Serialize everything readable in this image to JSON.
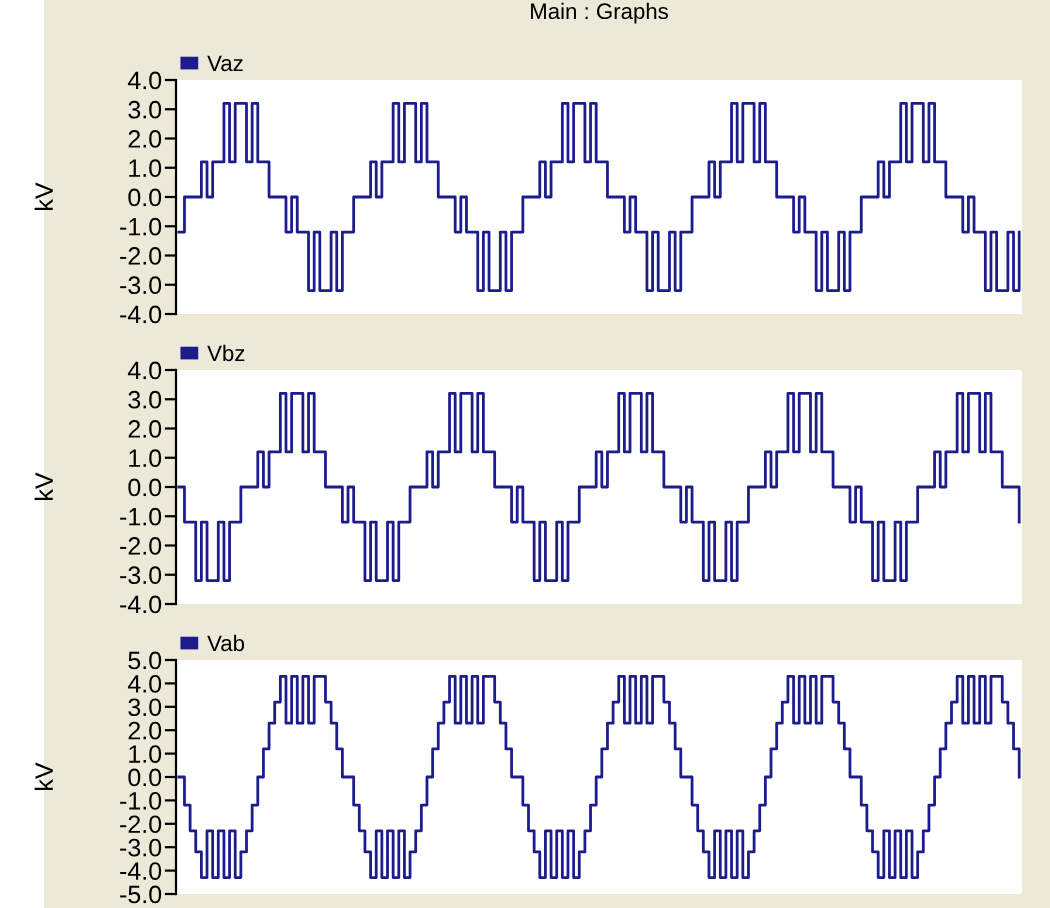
{
  "chart_data": [
    {
      "type": "step",
      "title": "Main : Graphs",
      "ylabel": "kV",
      "legend": "top left",
      "tick_labels": "y",
      "grid": false,
      "categories": [
        null,
        null,
        null,
        null,
        null,
        null,
        null,
        null,
        null,
        null,
        null,
        null,
        null,
        null,
        null,
        null,
        null,
        null,
        null,
        null,
        null,
        null,
        null,
        null,
        null,
        null,
        null,
        null,
        null,
        null,
        null,
        null,
        null,
        null,
        null,
        null,
        null,
        null,
        null,
        null,
        null,
        null,
        null,
        null,
        null,
        null,
        null,
        null,
        null,
        null,
        null,
        null,
        null,
        null,
        null,
        null,
        null,
        null,
        null,
        null,
        null,
        null,
        null,
        null,
        null,
        null,
        null,
        null,
        null,
        null,
        null,
        null,
        null,
        null,
        null,
        null,
        null,
        null,
        null,
        null,
        null,
        null,
        null,
        null,
        null,
        null,
        null,
        null,
        null,
        null,
        null,
        null,
        null,
        null,
        null,
        null,
        null,
        null,
        null,
        null,
        null,
        null,
        null,
        null,
        null,
        null,
        null,
        null,
        null,
        null,
        null,
        null,
        null,
        null,
        null,
        null,
        null,
        null,
        null,
        null,
        null,
        null,
        null,
        null,
        null,
        null,
        null,
        null,
        null,
        null,
        null,
        null,
        null,
        null,
        null,
        null,
        null,
        null,
        null,
        null,
        null,
        null,
        null,
        null,
        null,
        null,
        null,
        null,
        null,
        null
      ],
      "ylim": [
        -4,
        4
      ],
      "yticks": [
        {
          "value": 4,
          "label": "4.0"
        },
        {
          "value": 3,
          "label": "3.0"
        },
        {
          "value": 2,
          "label": "2.0"
        },
        {
          "value": 1,
          "label": "1.0"
        },
        {
          "value": 0,
          "label": "0.0"
        },
        {
          "value": -1,
          "label": "-1.0"
        },
        {
          "value": -2,
          "label": "-2.0"
        },
        {
          "value": -3,
          "label": "-3.0"
        },
        {
          "value": -4,
          "label": "-4.0"
        }
      ],
      "series": [
        {
          "name": "Vaz",
          "color": "#1c1c8c",
          "values": [
            -1.2,
            0,
            0,
            0,
            1.2,
            0,
            1.2,
            1.2,
            3.2,
            1.2,
            3.2,
            3.2,
            1.2,
            3.2,
            1.2,
            1.2,
            0,
            0,
            0,
            -1.2,
            0,
            -1.2,
            -1.2,
            -3.2,
            -1.2,
            -3.2,
            -3.2,
            -1.2,
            -3.2,
            -1.2,
            -1.2,
            0,
            0,
            0,
            1.2,
            0,
            1.2,
            1.2,
            3.2,
            1.2,
            3.2,
            3.2,
            1.2,
            3.2,
            1.2,
            1.2,
            0,
            0,
            0,
            -1.2,
            0,
            -1.2,
            -1.2,
            -3.2,
            -1.2,
            -3.2,
            -3.2,
            -1.2,
            -3.2,
            -1.2,
            -1.2,
            0,
            0,
            0,
            1.2,
            0,
            1.2,
            1.2,
            3.2,
            1.2,
            3.2,
            3.2,
            1.2,
            3.2,
            1.2,
            1.2,
            0,
            0,
            0,
            -1.2,
            0,
            -1.2,
            -1.2,
            -3.2,
            -1.2,
            -3.2,
            -3.2,
            -1.2,
            -3.2,
            -1.2,
            -1.2,
            0,
            0,
            0,
            1.2,
            0,
            1.2,
            1.2,
            3.2,
            1.2,
            3.2,
            3.2,
            1.2,
            3.2,
            1.2,
            1.2,
            0,
            0,
            0,
            -1.2,
            0,
            -1.2,
            -1.2,
            -3.2,
            -1.2,
            -3.2,
            -3.2,
            -1.2,
            -3.2,
            -1.2,
            -1.2,
            0,
            0,
            0,
            1.2,
            0,
            1.2,
            1.2,
            3.2,
            1.2,
            3.2,
            3.2,
            1.2,
            3.2,
            1.2,
            1.2,
            0,
            0,
            0,
            -1.2,
            0,
            -1.2,
            -1.2,
            -3.2,
            -1.2,
            -3.2,
            -3.2,
            -1.2,
            -3.2,
            -1.2
          ]
        }
      ]
    },
    {
      "type": "step",
      "ylabel": "kV",
      "legend": "top left",
      "tick_labels": "y",
      "grid": false,
      "categories": [
        null,
        null,
        null,
        null,
        null,
        null,
        null,
        null,
        null,
        null,
        null,
        null,
        null,
        null,
        null,
        null,
        null,
        null,
        null,
        null,
        null,
        null,
        null,
        null,
        null,
        null,
        null,
        null,
        null,
        null,
        null,
        null,
        null,
        null,
        null,
        null,
        null,
        null,
        null,
        null,
        null,
        null,
        null,
        null,
        null,
        null,
        null,
        null,
        null,
        null,
        null,
        null,
        null,
        null,
        null,
        null,
        null,
        null,
        null,
        null,
        null,
        null,
        null,
        null,
        null,
        null,
        null,
        null,
        null,
        null,
        null,
        null,
        null,
        null,
        null,
        null,
        null,
        null,
        null,
        null,
        null,
        null,
        null,
        null,
        null,
        null,
        null,
        null,
        null,
        null,
        null,
        null,
        null,
        null,
        null,
        null,
        null,
        null,
        null,
        null,
        null,
        null,
        null,
        null,
        null,
        null,
        null,
        null,
        null,
        null,
        null,
        null,
        null,
        null,
        null,
        null,
        null,
        null,
        null,
        null,
        null,
        null,
        null,
        null,
        null,
        null,
        null,
        null,
        null,
        null,
        null,
        null,
        null,
        null,
        null,
        null,
        null,
        null,
        null,
        null,
        null,
        null,
        null,
        null,
        null,
        null,
        null,
        null,
        null,
        null
      ],
      "ylim": [
        -4,
        4
      ],
      "yticks": [
        {
          "value": 4,
          "label": "4.0"
        },
        {
          "value": 3,
          "label": "3.0"
        },
        {
          "value": 2,
          "label": "2.0"
        },
        {
          "value": 1,
          "label": "1.0"
        },
        {
          "value": 0,
          "label": "0.0"
        },
        {
          "value": -1,
          "label": "-1.0"
        },
        {
          "value": -2,
          "label": "-2.0"
        },
        {
          "value": -3,
          "label": "-3.0"
        },
        {
          "value": -4,
          "label": "-4.0"
        }
      ],
      "series": [
        {
          "name": "Vbz",
          "color": "#1c1c8c",
          "values": [
            0,
            -1.2,
            -1.2,
            -3.2,
            -1.2,
            -3.2,
            -3.2,
            -1.2,
            -3.2,
            -1.2,
            -1.2,
            0,
            0,
            0,
            1.2,
            0,
            1.2,
            1.2,
            3.2,
            1.2,
            3.2,
            3.2,
            1.2,
            3.2,
            1.2,
            1.2,
            0,
            0,
            0,
            -1.2,
            0,
            -1.2,
            -1.2,
            -3.2,
            -1.2,
            -3.2,
            -3.2,
            -1.2,
            -3.2,
            -1.2,
            -1.2,
            0,
            0,
            0,
            1.2,
            0,
            1.2,
            1.2,
            3.2,
            1.2,
            3.2,
            3.2,
            1.2,
            3.2,
            1.2,
            1.2,
            0,
            0,
            0,
            -1.2,
            0,
            -1.2,
            -1.2,
            -3.2,
            -1.2,
            -3.2,
            -3.2,
            -1.2,
            -3.2,
            -1.2,
            -1.2,
            0,
            0,
            0,
            1.2,
            0,
            1.2,
            1.2,
            3.2,
            1.2,
            3.2,
            3.2,
            1.2,
            3.2,
            1.2,
            1.2,
            0,
            0,
            0,
            -1.2,
            0,
            -1.2,
            -1.2,
            -3.2,
            -1.2,
            -3.2,
            -3.2,
            -1.2,
            -3.2,
            -1.2,
            -1.2,
            0,
            0,
            0,
            1.2,
            0,
            1.2,
            1.2,
            3.2,
            1.2,
            3.2,
            3.2,
            1.2,
            3.2,
            1.2,
            1.2,
            0,
            0,
            0,
            -1.2,
            0,
            -1.2,
            -1.2,
            -3.2,
            -1.2,
            -3.2,
            -3.2,
            -1.2,
            -3.2,
            -1.2,
            -1.2,
            0,
            0,
            0,
            1.2,
            0,
            1.2,
            1.2,
            3.2,
            1.2,
            3.2,
            3.2,
            1.2,
            3.2,
            1.2,
            1.2,
            0,
            0,
            0,
            -1.2
          ]
        }
      ]
    },
    {
      "type": "step",
      "ylabel": "kV",
      "legend": "top left",
      "tick_labels": "y",
      "grid": false,
      "categories": [
        null,
        null,
        null,
        null,
        null,
        null,
        null,
        null,
        null,
        null,
        null,
        null,
        null,
        null,
        null,
        null,
        null,
        null,
        null,
        null,
        null,
        null,
        null,
        null,
        null,
        null,
        null,
        null,
        null,
        null,
        null,
        null,
        null,
        null,
        null,
        null,
        null,
        null,
        null,
        null,
        null,
        null,
        null,
        null,
        null,
        null,
        null,
        null,
        null,
        null,
        null,
        null,
        null,
        null,
        null,
        null,
        null,
        null,
        null,
        null,
        null,
        null,
        null,
        null,
        null,
        null,
        null,
        null,
        null,
        null,
        null,
        null,
        null,
        null,
        null,
        null,
        null,
        null,
        null,
        null,
        null,
        null,
        null,
        null,
        null,
        null,
        null,
        null,
        null,
        null,
        null,
        null,
        null,
        null,
        null,
        null,
        null,
        null,
        null,
        null,
        null,
        null,
        null,
        null,
        null,
        null,
        null,
        null,
        null,
        null,
        null,
        null,
        null,
        null,
        null,
        null,
        null,
        null,
        null,
        null,
        null,
        null,
        null,
        null,
        null,
        null,
        null,
        null,
        null,
        null,
        null,
        null,
        null,
        null,
        null,
        null,
        null,
        null,
        null,
        null,
        null,
        null,
        null,
        null,
        null,
        null,
        null,
        null,
        null,
        null
      ],
      "ylim": [
        -5,
        5
      ],
      "yticks": [
        {
          "value": 5,
          "label": "5.0"
        },
        {
          "value": 4,
          "label": "4.0"
        },
        {
          "value": 3,
          "label": "3.0"
        },
        {
          "value": 2,
          "label": "2.0"
        },
        {
          "value": 1,
          "label": "1.0"
        },
        {
          "value": 0,
          "label": "0.0"
        },
        {
          "value": -1,
          "label": "-1.0"
        },
        {
          "value": -2,
          "label": "-2.0"
        },
        {
          "value": -3,
          "label": "-3.0"
        },
        {
          "value": -4,
          "label": "-4.0"
        },
        {
          "value": -5,
          "label": "-5.0"
        }
      ],
      "series": [
        {
          "name": "Vab",
          "color": "#1c1c8c",
          "values": [
            0,
            -1.2,
            -2.3,
            -3.2,
            -4.3,
            -2.3,
            -4.3,
            -2.3,
            -4.3,
            -2.3,
            -4.3,
            -3.2,
            -2.3,
            -1.2,
            0,
            1.2,
            2.3,
            3.2,
            4.3,
            2.3,
            4.3,
            2.3,
            4.3,
            2.3,
            4.3,
            4.3,
            3.2,
            2.3,
            1.2,
            0,
            0,
            -1.2,
            -2.3,
            -3.2,
            -4.3,
            -2.3,
            -4.3,
            -2.3,
            -4.3,
            -2.3,
            -4.3,
            -3.2,
            -2.3,
            -1.2,
            0,
            1.2,
            2.3,
            3.2,
            4.3,
            2.3,
            4.3,
            2.3,
            4.3,
            2.3,
            4.3,
            4.3,
            3.2,
            2.3,
            1.2,
            0,
            0,
            -1.2,
            -2.3,
            -3.2,
            -4.3,
            -2.3,
            -4.3,
            -2.3,
            -4.3,
            -2.3,
            -4.3,
            -3.2,
            -2.3,
            -1.2,
            0,
            1.2,
            2.3,
            3.2,
            4.3,
            2.3,
            4.3,
            2.3,
            4.3,
            2.3,
            4.3,
            4.3,
            3.2,
            2.3,
            1.2,
            0,
            0,
            -1.2,
            -2.3,
            -3.2,
            -4.3,
            -2.3,
            -4.3,
            -2.3,
            -4.3,
            -2.3,
            -4.3,
            -3.2,
            -2.3,
            -1.2,
            0,
            1.2,
            2.3,
            3.2,
            4.3,
            2.3,
            4.3,
            2.3,
            4.3,
            2.3,
            4.3,
            4.3,
            3.2,
            2.3,
            1.2,
            0,
            0,
            -1.2,
            -2.3,
            -3.2,
            -4.3,
            -2.3,
            -4.3,
            -2.3,
            -4.3,
            -2.3,
            -4.3,
            -3.2,
            -2.3,
            -1.2,
            0,
            1.2,
            2.3,
            3.2,
            4.3,
            2.3,
            4.3,
            2.3,
            4.3,
            2.3,
            4.3,
            4.3,
            3.2,
            2.3,
            1.2,
            0
          ]
        }
      ]
    }
  ]
}
